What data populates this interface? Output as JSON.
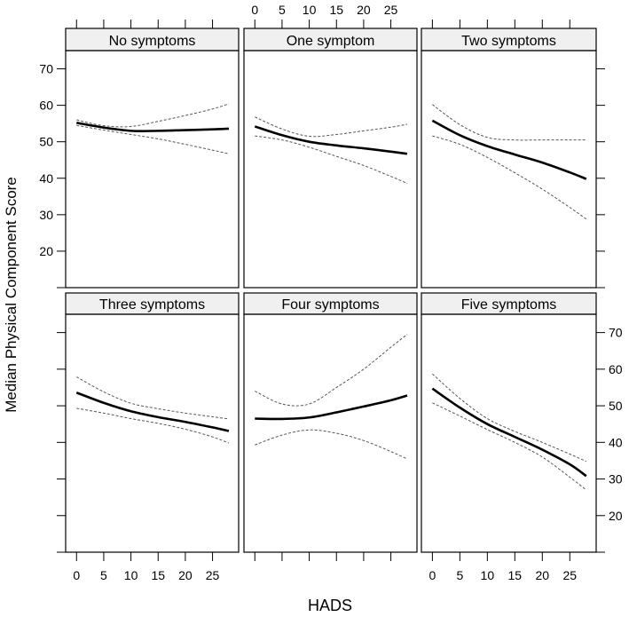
{
  "chart_data": {
    "type": "line",
    "layout": "lattice 3x2 panels",
    "xlabel": "HADS",
    "ylabel": "Median Physical Component Score",
    "xlim": [
      -2,
      29.8
    ],
    "ylim": [
      10,
      75
    ],
    "x_ticks": [
      0,
      5,
      10,
      15,
      20,
      25
    ],
    "y_ticks": [
      20,
      30,
      40,
      50,
      60,
      70
    ],
    "grid": false,
    "x": [
      0,
      5,
      10,
      15,
      20,
      25,
      28
    ],
    "line_styles": {
      "fit": "solid thick black",
      "ci": "dashed thin grey"
    },
    "colors": {
      "fit": "#000000",
      "ci": "#555555",
      "strip": "#f0f0f0"
    },
    "panels": [
      {
        "title": "No symptoms",
        "fit": [
          55.2,
          53.9,
          53.0,
          53.0,
          53.2,
          53.4,
          53.6
        ],
        "upper": [
          56.0,
          54.4,
          54.2,
          55.6,
          57.2,
          59.0,
          60.4
        ],
        "lower": [
          54.5,
          53.2,
          52.0,
          50.8,
          49.3,
          47.7,
          46.7
        ]
      },
      {
        "title": "One symptom",
        "fit": [
          54.2,
          51.8,
          50.0,
          49.0,
          48.2,
          47.3,
          46.7
        ],
        "upper": [
          56.8,
          53.5,
          51.5,
          52.0,
          53.0,
          54.0,
          54.8
        ],
        "lower": [
          51.6,
          50.5,
          48.5,
          46.0,
          43.5,
          40.5,
          38.6
        ]
      },
      {
        "title": "Two symptoms",
        "fit": [
          55.8,
          51.8,
          48.8,
          46.5,
          44.3,
          41.6,
          39.8
        ],
        "upper": [
          60.2,
          54.7,
          51.2,
          50.5,
          50.5,
          50.5,
          50.5
        ],
        "lower": [
          51.6,
          49.3,
          45.7,
          41.5,
          37.0,
          32.0,
          28.8
        ]
      },
      {
        "title": "Three symptoms",
        "fit": [
          53.6,
          50.8,
          48.5,
          46.9,
          45.6,
          44.1,
          43.1
        ],
        "upper": [
          57.9,
          53.8,
          50.7,
          49.2,
          48.0,
          47.0,
          46.4
        ],
        "lower": [
          49.3,
          48.0,
          46.5,
          45.2,
          43.6,
          41.5,
          39.8
        ]
      },
      {
        "title": "Four symptoms",
        "fit": [
          46.5,
          46.4,
          46.8,
          48.2,
          49.8,
          51.5,
          52.8
        ],
        "upper": [
          54.0,
          50.5,
          50.5,
          55.0,
          60.0,
          66.0,
          69.5
        ],
        "lower": [
          39.3,
          42.0,
          43.4,
          42.5,
          40.5,
          37.5,
          35.5
        ]
      },
      {
        "title": "Five symptoms",
        "fit": [
          54.7,
          49.5,
          45.0,
          41.5,
          38.0,
          34.0,
          30.8
        ],
        "upper": [
          58.7,
          52.0,
          46.5,
          43.0,
          40.0,
          36.8,
          34.8
        ],
        "lower": [
          50.8,
          47.2,
          43.5,
          40.0,
          36.0,
          30.5,
          27.0
        ]
      }
    ]
  }
}
